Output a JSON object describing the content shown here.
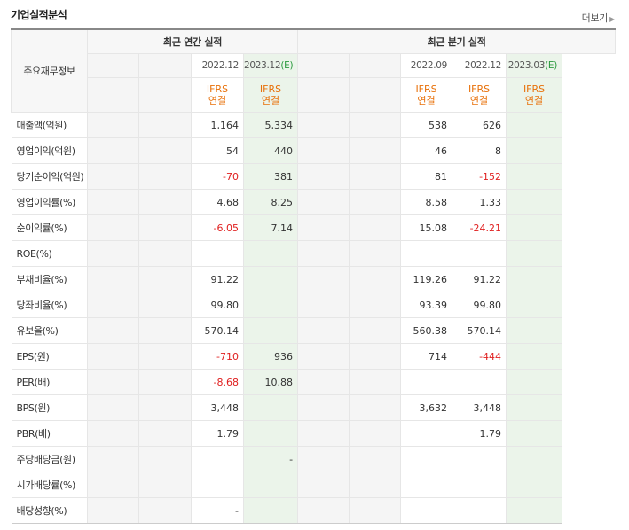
{
  "title": "기업실적분석",
  "more_label": "더보기",
  "header": {
    "corner_label": "주요재무정보",
    "annual_group": "최근 연간 실적",
    "quarter_group": "최근 분기 실적",
    "annual_dates": [
      "",
      "",
      "2022.12",
      "2023.12"
    ],
    "annual_est_mark": "(E)",
    "quarter_dates": [
      "",
      "",
      "2022.09",
      "2022.12",
      "2023.03"
    ],
    "quarter_est_mark": "(E)",
    "ifrs_line1": "IFRS",
    "ifrs_line2": "연결"
  },
  "rows": [
    {
      "label": "매출액(억원)",
      "annual": [
        "",
        "",
        "1,164",
        "5,334"
      ],
      "quarter": [
        "",
        "",
        "538",
        "626",
        ""
      ]
    },
    {
      "label": "영업이익(억원)",
      "annual": [
        "",
        "",
        "54",
        "440"
      ],
      "quarter": [
        "",
        "",
        "46",
        "8",
        ""
      ]
    },
    {
      "label": "당기순이익(억원)",
      "annual": [
        "",
        "",
        "-70",
        "381"
      ],
      "quarter": [
        "",
        "",
        "81",
        "-152",
        ""
      ]
    },
    {
      "label": "영업이익률(%)",
      "annual": [
        "",
        "",
        "4.68",
        "8.25"
      ],
      "quarter": [
        "",
        "",
        "8.58",
        "1.33",
        ""
      ]
    },
    {
      "label": "순이익률(%)",
      "annual": [
        "",
        "",
        "-6.05",
        "7.14"
      ],
      "quarter": [
        "",
        "",
        "15.08",
        "-24.21",
        ""
      ]
    },
    {
      "label": "ROE(%)",
      "annual": [
        "",
        "",
        "",
        ""
      ],
      "quarter": [
        "",
        "",
        "",
        "",
        ""
      ]
    },
    {
      "label": "부채비율(%)",
      "annual": [
        "",
        "",
        "91.22",
        ""
      ],
      "quarter": [
        "",
        "",
        "119.26",
        "91.22",
        ""
      ]
    },
    {
      "label": "당좌비율(%)",
      "annual": [
        "",
        "",
        "99.80",
        ""
      ],
      "quarter": [
        "",
        "",
        "93.39",
        "99.80",
        ""
      ]
    },
    {
      "label": "유보율(%)",
      "annual": [
        "",
        "",
        "570.14",
        ""
      ],
      "quarter": [
        "",
        "",
        "560.38",
        "570.14",
        ""
      ]
    },
    {
      "label": "EPS(원)",
      "annual": [
        "",
        "",
        "-710",
        "936"
      ],
      "quarter": [
        "",
        "",
        "714",
        "-444",
        ""
      ]
    },
    {
      "label": "PER(배)",
      "annual": [
        "",
        "",
        "-8.68",
        "10.88"
      ],
      "quarter": [
        "",
        "",
        "",
        "",
        ""
      ]
    },
    {
      "label": "BPS(원)",
      "annual": [
        "",
        "",
        "3,448",
        ""
      ],
      "quarter": [
        "",
        "",
        "3,632",
        "3,448",
        ""
      ]
    },
    {
      "label": "PBR(배)",
      "annual": [
        "",
        "",
        "1.79",
        ""
      ],
      "quarter": [
        "",
        "",
        "",
        "1.79",
        ""
      ]
    },
    {
      "label": "주당배당금(원)",
      "annual": [
        "",
        "",
        "",
        "-"
      ],
      "quarter": [
        "",
        "",
        "",
        "",
        ""
      ]
    },
    {
      "label": "시가배당률(%)",
      "annual": [
        "",
        "",
        "",
        ""
      ],
      "quarter": [
        "",
        "",
        "",
        "",
        ""
      ]
    },
    {
      "label": "배당성향(%)",
      "annual": [
        "",
        "",
        "-",
        ""
      ],
      "quarter": [
        "",
        "",
        "",
        "",
        ""
      ]
    }
  ]
}
